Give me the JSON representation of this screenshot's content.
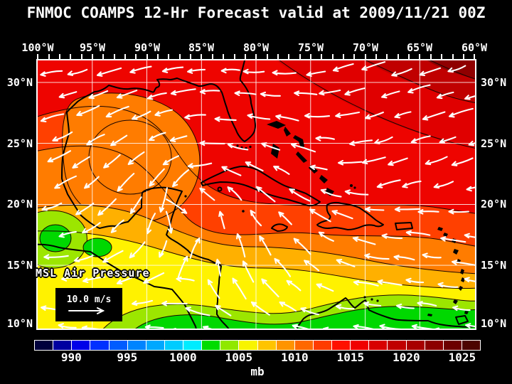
{
  "title": "FNMOC COAMPS 12-Hr Forecast valid at 2009/11/21 00Z",
  "map": {
    "top_axis": [
      "100°W",
      "95°W",
      "90°W",
      "85°W",
      "80°W",
      "75°W",
      "70°W",
      "65°W",
      "60°W"
    ],
    "left_axis": [
      "30°N",
      "25°N",
      "20°N",
      "15°N",
      "10°N"
    ],
    "right_axis": [
      "30°N",
      "25°N",
      "20°N",
      "15°N",
      "10°N"
    ],
    "overlay_label": "MSL Air Pressure",
    "wind_legend": {
      "speed_label": "10.0 m/s",
      "icon": "right-arrow-icon"
    },
    "colors": {
      "red": "#EE0400",
      "red_deep": "#E00000",
      "red_dark": "#C00000",
      "red_darkest": "#8F0000",
      "orange_red": "#FF4000",
      "orange": "#FF7C00",
      "amber": "#FFB000",
      "yellow": "#FFF200",
      "chartreuse": "#9CE600",
      "green": "#00D800",
      "coastline": "#000000",
      "grid": "#FFFFFF",
      "wind": "#FFFFFF"
    }
  },
  "colorbar": {
    "tick_labels": [
      "990",
      "995",
      "1000",
      "1005",
      "1010",
      "1015",
      "1020",
      "1025"
    ],
    "unit": "mb",
    "segment_colors": [
      "#00003C",
      "#0000A0",
      "#0000E8",
      "#0030FF",
      "#005CFF",
      "#0084FF",
      "#00A8FF",
      "#00CCFF",
      "#00ECFF",
      "#00DC00",
      "#90E800",
      "#F8F400",
      "#FFC400",
      "#FF9400",
      "#FF6800",
      "#FF3C00",
      "#FF1000",
      "#F00000",
      "#D80000",
      "#C00000",
      "#A80000",
      "#8C0000",
      "#6C0000",
      "#4C0400"
    ]
  }
}
